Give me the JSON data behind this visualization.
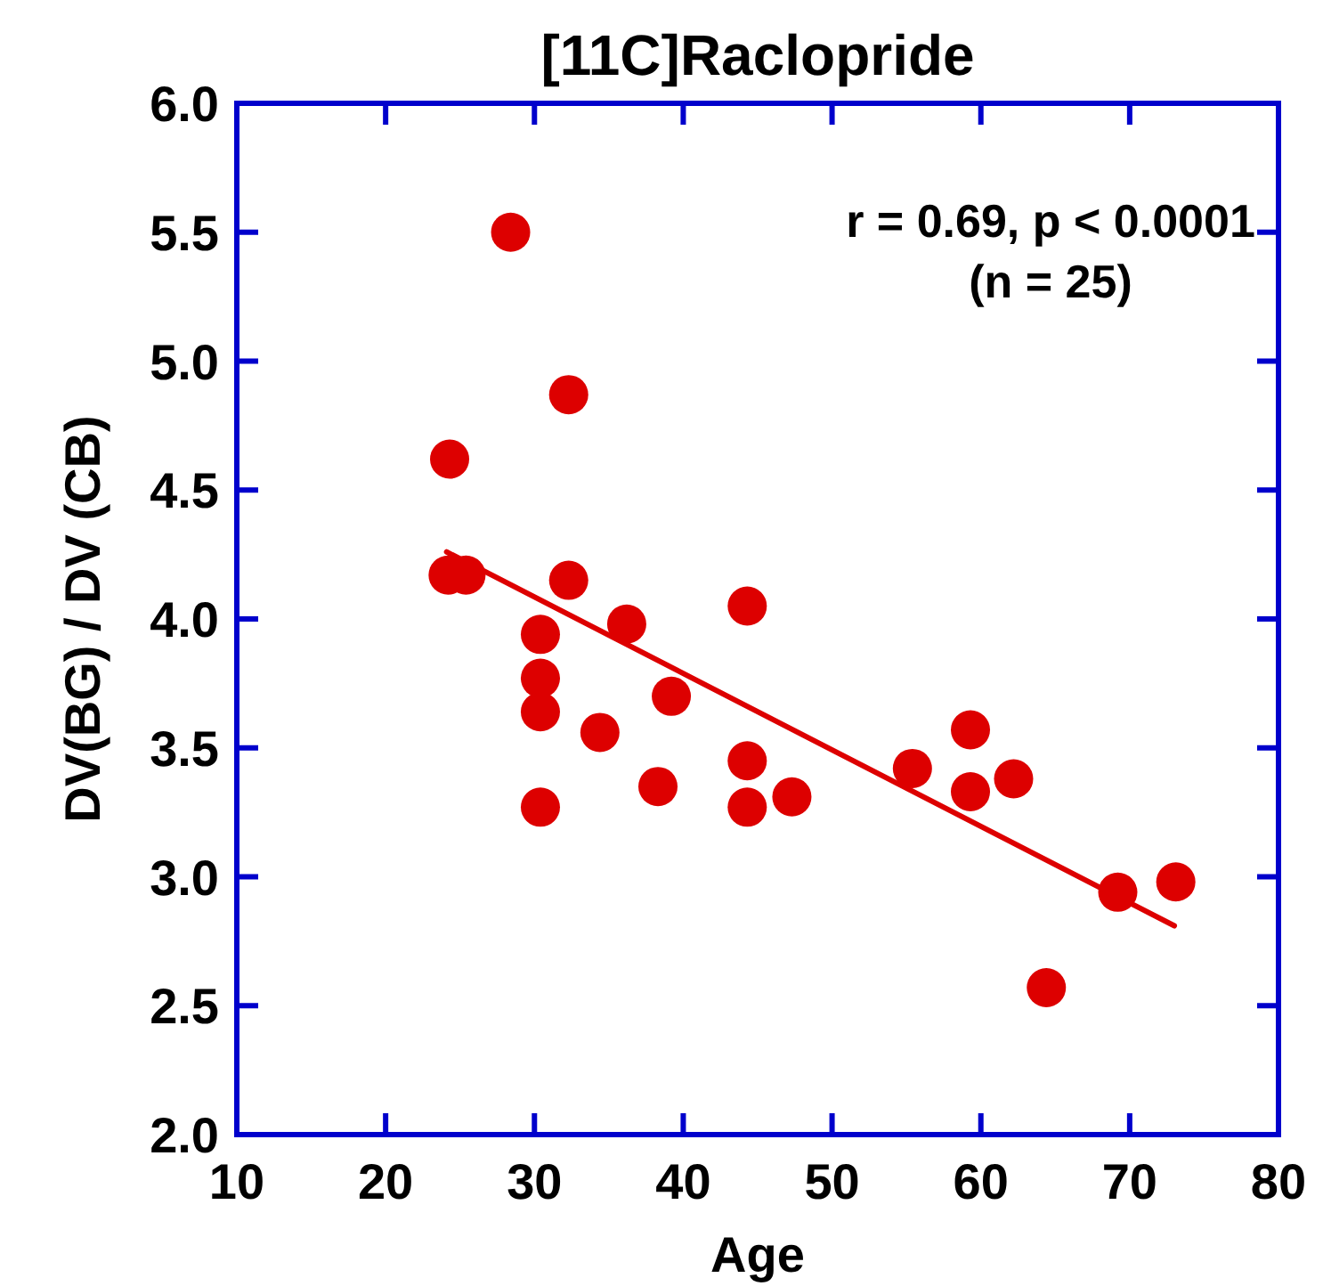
{
  "chart_data": {
    "type": "scatter",
    "title": "[11C]Raclopride",
    "xlabel": "Age",
    "ylabel": "DV(BG) / DV (CB)",
    "annotations": [
      "r = 0.69, p < 0.0001",
      "(n = 25)"
    ],
    "xlim": [
      10,
      80
    ],
    "xticks": [
      10,
      20,
      30,
      40,
      50,
      60,
      70,
      80
    ],
    "ylim": [
      2,
      6
    ],
    "yticks": [
      {
        "value": 2,
        "label": "2.0"
      },
      {
        "value": 2.5,
        "label": "2.5"
      },
      {
        "value": 3,
        "label": "3.0"
      },
      {
        "value": 3.5,
        "label": "3.5"
      },
      {
        "value": 4,
        "label": "4.0"
      },
      {
        "value": 4.5,
        "label": "4.5"
      },
      {
        "value": 5,
        "label": "5.0"
      },
      {
        "value": 5.5,
        "label": "5.5"
      },
      {
        "value": 6,
        "label": "6.0"
      }
    ],
    "grid": false,
    "series": [
      {
        "color": "#dd0000",
        "marker": "circle",
        "x": [
          28.4,
          32.3,
          24.3,
          24.2,
          25.4,
          32.3,
          30.4,
          36.2,
          44.3,
          30.4,
          30.4,
          34.4,
          39.2,
          38.3,
          30.4,
          44.3,
          44.3,
          47.3,
          55.4,
          59.3,
          59.3,
          62.2,
          64.4,
          69.2,
          73.1
        ],
        "values": [
          5.5,
          4.87,
          4.62,
          4.17,
          4.17,
          4.15,
          3.94,
          3.98,
          4.05,
          3.77,
          3.64,
          3.56,
          3.7,
          3.35,
          3.27,
          3.45,
          3.27,
          3.31,
          3.42,
          3.57,
          3.33,
          3.38,
          2.57,
          2.94,
          2.98
        ]
      },
      {
        "type": "line",
        "color": "#dd0000",
        "line_style": "solid",
        "marker": "none",
        "x": [
          24.1,
          73
        ],
        "values": [
          4.26,
          2.81
        ]
      }
    ]
  }
}
